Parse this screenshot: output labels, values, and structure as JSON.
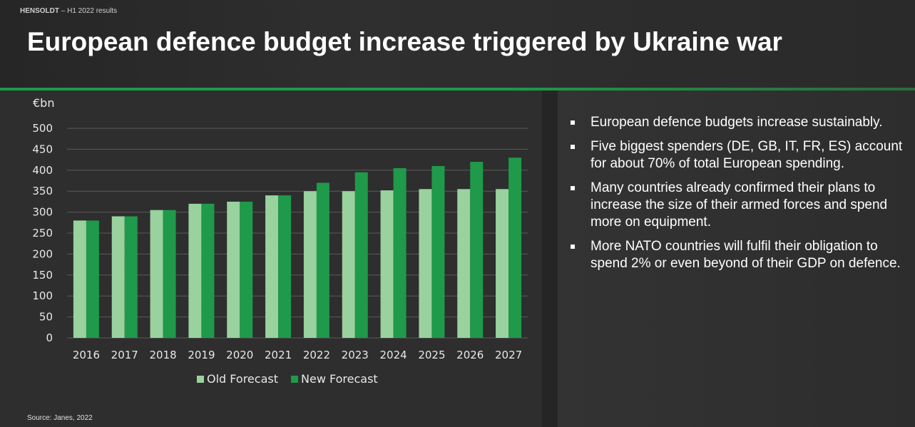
{
  "header": {
    "company": "HENSOLDT",
    "context": " – H1 2022 results"
  },
  "title": "European defence budget increase triggered by Ukraine war",
  "source": "Source: Janes, 2022",
  "bullets": [
    "European defence budgets increase sustainably.",
    "Five biggest spenders (DE, GB, IT, FR, ES) account for about 70% of total European spending.",
    "Many countries already confirmed their plans to increase the size of their armed forces and spend more on equipment.",
    "More NATO countries will fulfil their obligation to spend 2% or even beyond of their GDP on defence."
  ],
  "chart_data": {
    "type": "bar",
    "unit_label": "€bn",
    "categories": [
      "2016",
      "2017",
      "2018",
      "2019",
      "2020",
      "2021",
      "2022",
      "2023",
      "2024",
      "2025",
      "2026",
      "2027"
    ],
    "series": [
      {
        "name": "Old Forecast",
        "color": "#99d29e",
        "values": [
          280,
          290,
          305,
          320,
          325,
          340,
          350,
          350,
          352,
          355,
          355,
          355
        ]
      },
      {
        "name": "New Forecast",
        "color": "#1e9a4a",
        "values": [
          280,
          290,
          305,
          320,
          325,
          340,
          370,
          395,
          405,
          410,
          420,
          430
        ]
      }
    ],
    "ylim": [
      0,
      500
    ],
    "yticks": [
      0,
      50,
      100,
      150,
      200,
      250,
      300,
      350,
      400,
      450,
      500
    ],
    "grid": true,
    "legend_position": "bottom-center",
    "grid_color": "#5a5a5a",
    "label_color": "#e8e8e8"
  }
}
